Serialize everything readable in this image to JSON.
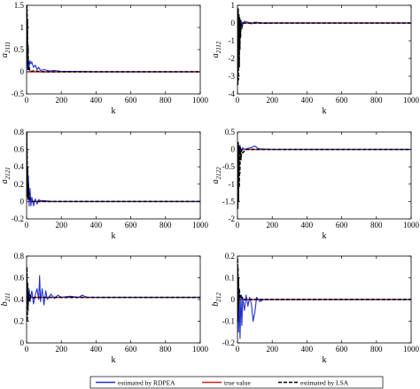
{
  "legend": {
    "rdpea_label": "estimated by RDPEA",
    "true_label": "true value",
    "lsa_label": "estimated by LSA",
    "colors": {
      "rdpea": "#1f2fd0",
      "true": "#e01a1a",
      "lsa": "#000000"
    }
  },
  "chart_data": [
    {
      "type": "line",
      "ylabel_base": "a",
      "ylabel_sub": "2111",
      "xlabel": "k",
      "xlim": [
        0,
        1000
      ],
      "ylim": [
        -0.5,
        1.5
      ],
      "xticks": [
        0,
        200,
        400,
        600,
        800,
        1000
      ],
      "yticks": [
        -0.5,
        0,
        0.5,
        1,
        1.5
      ],
      "true_value": 0.0,
      "series": [
        {
          "name": "estimated by RDPEA",
          "x": [
            0,
            3,
            6,
            10,
            15,
            20,
            25,
            30,
            40,
            50,
            60,
            70,
            80,
            100,
            130,
            160,
            200,
            300,
            400,
            600,
            800,
            1000
          ],
          "y": [
            0,
            0.2,
            0.05,
            0.28,
            0.12,
            0.25,
            0.18,
            0.22,
            0.1,
            0.15,
            0.05,
            0.1,
            0.03,
            0.05,
            0.02,
            0.03,
            0.01,
            0.01,
            0,
            0,
            0,
            0
          ]
        },
        {
          "name": "estimated by LSA",
          "x": [
            0,
            1,
            2,
            3,
            4,
            5,
            6,
            8,
            10,
            15,
            20,
            40,
            100,
            200,
            1000
          ],
          "y": [
            0.4,
            1.5,
            0.3,
            1.4,
            0.2,
            1.2,
            0.1,
            0.6,
            0.05,
            0.1,
            0,
            0.02,
            0,
            0,
            0
          ]
        }
      ]
    },
    {
      "type": "line",
      "ylabel_base": "a",
      "ylabel_sub": "2112",
      "xlabel": "k",
      "xlim": [
        0,
        1000
      ],
      "ylim": [
        -4,
        1
      ],
      "xticks": [
        0,
        200,
        400,
        600,
        800,
        1000
      ],
      "yticks": [
        -4,
        -3,
        -2,
        -1,
        0,
        1
      ],
      "true_value": 0.0,
      "series": [
        {
          "name": "estimated by RDPEA",
          "x": [
            0,
            5,
            10,
            15,
            20,
            30,
            40,
            60,
            80,
            100,
            130,
            160,
            200,
            400,
            1000
          ],
          "y": [
            0,
            -0.3,
            0.2,
            -0.2,
            0.15,
            -0.1,
            0.1,
            0.05,
            -0.05,
            0.05,
            0.02,
            -0.02,
            0,
            0,
            0
          ]
        },
        {
          "name": "estimated by LSA",
          "x": [
            0,
            2,
            4,
            6,
            8,
            10,
            12,
            14,
            16,
            18,
            20,
            25,
            30,
            50,
            200,
            1000
          ],
          "y": [
            0,
            -3.5,
            0.8,
            -3.2,
            0.5,
            -2.5,
            0.3,
            -1.5,
            0.2,
            -0.8,
            0.05,
            -0.3,
            0,
            0,
            0,
            0
          ]
        }
      ]
    },
    {
      "type": "line",
      "ylabel_base": "a",
      "ylabel_sub": "2121",
      "xlabel": "k",
      "xlim": [
        0,
        1000
      ],
      "ylim": [
        -0.2,
        0.8
      ],
      "xticks": [
        0,
        200,
        400,
        600,
        800,
        1000
      ],
      "yticks": [
        -0.2,
        0,
        0.2,
        0.4,
        0.6,
        0.8
      ],
      "true_value": 0.0,
      "series": [
        {
          "name": "estimated by RDPEA",
          "x": [
            0,
            3,
            6,
            10,
            15,
            20,
            25,
            30,
            40,
            50,
            60,
            70,
            80,
            100,
            150,
            200,
            400,
            1000
          ],
          "y": [
            0.2,
            0.4,
            0.1,
            0.3,
            -0.05,
            0.15,
            -0.05,
            0.05,
            -0.05,
            0.03,
            -0.03,
            0.02,
            0.01,
            0.01,
            0,
            0,
            0,
            0
          ]
        },
        {
          "name": "estimated by LSA",
          "x": [
            0,
            1,
            2,
            3,
            4,
            6,
            8,
            10,
            15,
            20,
            30,
            50,
            100,
            1000
          ],
          "y": [
            0.3,
            0.8,
            0.1,
            0.6,
            0.05,
            0.4,
            0.02,
            0.2,
            0.05,
            0.02,
            0,
            0,
            0,
            0
          ]
        }
      ]
    },
    {
      "type": "line",
      "ylabel_base": "a",
      "ylabel_sub": "2122",
      "xlabel": "k",
      "xlim": [
        0,
        1000
      ],
      "ylim": [
        -2,
        0.5
      ],
      "xticks": [
        0,
        200,
        400,
        600,
        800,
        1000
      ],
      "yticks": [
        -2,
        -1.5,
        -1,
        -0.5,
        0,
        0.5
      ],
      "true_value": 0.0,
      "series": [
        {
          "name": "estimated by RDPEA",
          "x": [
            0,
            5,
            10,
            15,
            20,
            30,
            40,
            60,
            80,
            100,
            120,
            150,
            200,
            400,
            1000
          ],
          "y": [
            0,
            0.1,
            -0.1,
            0.12,
            -0.05,
            0.05,
            0,
            0.03,
            0.05,
            0.1,
            0.02,
            0.01,
            0,
            0,
            0
          ]
        },
        {
          "name": "estimated by LSA",
          "x": [
            0,
            2,
            4,
            6,
            8,
            10,
            12,
            14,
            16,
            20,
            25,
            30,
            50,
            100,
            1000
          ],
          "y": [
            0,
            -1.7,
            0.2,
            -1.5,
            0.1,
            -1.1,
            0.05,
            -0.7,
            0.05,
            -0.3,
            0,
            -0.1,
            0,
            0,
            0
          ]
        }
      ]
    },
    {
      "type": "line",
      "ylabel_base": "b",
      "ylabel_sub": "211",
      "xlabel": "k",
      "xlim": [
        0,
        1000
      ],
      "ylim": [
        0,
        0.8
      ],
      "xticks": [
        0,
        200,
        400,
        600,
        800,
        1000
      ],
      "yticks": [
        0,
        0.2,
        0.4,
        0.6,
        0.8
      ],
      "true_value": 0.42,
      "series": [
        {
          "name": "estimated by RDPEA",
          "x": [
            0,
            5,
            10,
            15,
            20,
            30,
            40,
            50,
            60,
            70,
            75,
            80,
            90,
            100,
            110,
            120,
            140,
            160,
            180,
            200,
            250,
            300,
            320,
            350,
            400,
            600,
            800,
            1000
          ],
          "y": [
            0.3,
            0.45,
            0.35,
            0.5,
            0.38,
            0.48,
            0.36,
            0.44,
            0.5,
            0.4,
            0.62,
            0.38,
            0.5,
            0.35,
            0.48,
            0.4,
            0.45,
            0.41,
            0.44,
            0.42,
            0.43,
            0.42,
            0.44,
            0.42,
            0.42,
            0.42,
            0.42,
            0.42
          ]
        },
        {
          "name": "estimated by LSA",
          "x": [
            0,
            2,
            4,
            6,
            8,
            10,
            15,
            20,
            30,
            50,
            100,
            1000
          ],
          "y": [
            0.42,
            0.7,
            0.2,
            0.55,
            0.3,
            0.48,
            0.38,
            0.44,
            0.41,
            0.42,
            0.42,
            0.42
          ]
        }
      ]
    },
    {
      "type": "line",
      "ylabel_base": "b",
      "ylabel_sub": "212",
      "xlabel": "k",
      "xlim": [
        0,
        1000
      ],
      "ylim": [
        -0.2,
        0.2
      ],
      "xticks": [
        0,
        200,
        400,
        600,
        800,
        1000
      ],
      "yticks": [
        -0.2,
        -0.1,
        0,
        0.1,
        0.2
      ],
      "true_value": 0.0,
      "series": [
        {
          "name": "estimated by RDPEA",
          "x": [
            0,
            3,
            6,
            10,
            15,
            20,
            25,
            30,
            40,
            50,
            60,
            70,
            80,
            90,
            100,
            110,
            130,
            150,
            200,
            400,
            1000
          ],
          "y": [
            0,
            0.08,
            -0.15,
            0.05,
            -0.18,
            0.02,
            -0.12,
            0.01,
            -0.05,
            0.02,
            -0.03,
            0.01,
            -0.02,
            -0.1,
            -0.06,
            0.01,
            -0.01,
            0,
            0,
            0,
            0
          ]
        },
        {
          "name": "estimated by LSA",
          "x": [
            0,
            1,
            2,
            3,
            4,
            6,
            8,
            10,
            15,
            20,
            30,
            50,
            100,
            1000
          ],
          "y": [
            0,
            0.19,
            -0.1,
            0.15,
            -0.05,
            0.1,
            -0.02,
            0.05,
            0.01,
            0.02,
            0,
            0,
            0,
            0
          ]
        }
      ]
    }
  ]
}
